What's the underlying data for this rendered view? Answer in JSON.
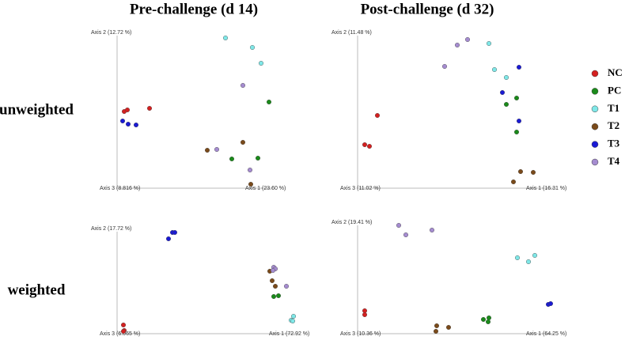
{
  "titles": {
    "columns": [
      "Pre-challenge (d 14)",
      "Post-challenge (d 32)"
    ],
    "rows": [
      "unweighted",
      "weighted"
    ]
  },
  "chart_data": [
    {
      "type": "scatter",
      "ylabel": "Axis 2 (12.72 %)",
      "origin_label": "Axis 3 (8.816 %)",
      "xlabel": "Axis 1 (23.60 %)",
      "xlim": [
        0,
        197
      ],
      "ylim": [
        0,
        193
      ],
      "series": [
        {
          "name": "NC",
          "color": "#d42020",
          "x": [
            9,
            13,
            41
          ],
          "values": [
            97,
            99,
            101
          ]
        },
        {
          "name": "PC",
          "color": "#1a8a1a",
          "x": [
            192,
            145,
            178
          ],
          "values": [
            109,
            37,
            38
          ]
        },
        {
          "name": "T1",
          "color": "#7fe8e8",
          "x": [
            137,
            171,
            182
          ],
          "values": [
            190,
            178,
            158
          ]
        },
        {
          "name": "T2",
          "color": "#7a4a1a",
          "x": [
            114,
            159,
            169
          ],
          "values": [
            48,
            58,
            5
          ]
        },
        {
          "name": "T3",
          "color": "#1a1ad4",
          "x": [
            7,
            14,
            24
          ],
          "values": [
            85,
            81,
            80
          ]
        },
        {
          "name": "T4",
          "color": "#a58cd0",
          "x": [
            159,
            126,
            168
          ],
          "values": [
            130,
            49,
            23
          ]
        }
      ]
    },
    {
      "type": "scatter",
      "ylabel": "Axis 2 (11.48 %)",
      "origin_label": "Axis 3 (11.02 %)",
      "xlabel": "Axis 1 (16.31 %)",
      "xlim": [
        0,
        248
      ],
      "ylim": [
        0,
        193
      ],
      "series": [
        {
          "name": "NC",
          "color": "#d42020",
          "x": [
            25,
            9,
            15
          ],
          "values": [
            92,
            55,
            53
          ]
        },
        {
          "name": "PC",
          "color": "#1a8a1a",
          "x": [
            201,
            188,
            201
          ],
          "values": [
            114,
            106,
            71
          ]
        },
        {
          "name": "T1",
          "color": "#7fe8e8",
          "x": [
            166,
            173,
            188
          ],
          "values": [
            183,
            150,
            140
          ]
        },
        {
          "name": "T2",
          "color": "#7a4a1a",
          "x": [
            206,
            222,
            197
          ],
          "values": [
            21,
            20,
            8
          ]
        },
        {
          "name": "T3",
          "color": "#1a1ad4",
          "x": [
            204,
            183,
            204
          ],
          "values": [
            153,
            121,
            85
          ]
        },
        {
          "name": "T4",
          "color": "#a58cd0",
          "x": [
            126,
            139,
            110
          ],
          "values": [
            181,
            188,
            154
          ]
        }
      ]
    },
    {
      "type": "scatter",
      "ylabel": "Axis 2 (17.72 %)",
      "origin_label": "Axis 3 (6.065 %)",
      "xlabel": "Axis 1 (72.92 %)",
      "xlim": [
        0,
        227
      ],
      "ylim": [
        0,
        129
      ],
      "series": [
        {
          "name": "NC",
          "color": "#d42020",
          "x": [
            8,
            9,
            8
          ],
          "values": [
            11,
            4,
            3
          ]
        },
        {
          "name": "PC",
          "color": "#1a8a1a",
          "x": [
            198,
            204
          ],
          "values": [
            47,
            48
          ]
        },
        {
          "name": "T1",
          "color": "#7fe8e8",
          "x": [
            223,
            220,
            222
          ],
          "values": [
            22,
            17,
            16
          ]
        },
        {
          "name": "T2",
          "color": "#7a4a1a",
          "x": [
            193,
            196,
            200
          ],
          "values": [
            79,
            67,
            60
          ]
        },
        {
          "name": "T3",
          "color": "#1a1ad4",
          "x": [
            65,
            70,
            73
          ],
          "values": [
            120,
            128,
            128
          ]
        },
        {
          "name": "T4",
          "color": "#a58cd0",
          "x": [
            198,
            200,
            214,
            197
          ],
          "values": [
            84,
            82,
            60,
            80
          ]
        }
      ]
    },
    {
      "type": "scatter",
      "ylabel": "Axis 2 (19.41 %)",
      "origin_label": "Axis 3 (10.36 %)",
      "xlabel": "Axis 1 (64.25 %)",
      "xlim": [
        0,
        248
      ],
      "ylim": [
        0,
        137
      ],
      "series": [
        {
          "name": "NC",
          "color": "#d42020",
          "x": [
            9,
            9
          ],
          "values": [
            29,
            24
          ]
        },
        {
          "name": "PC",
          "color": "#1a8a1a",
          "x": [
            159,
            166,
            165
          ],
          "values": [
            18,
            20,
            15
          ]
        },
        {
          "name": "T1",
          "color": "#7fe8e8",
          "x": [
            202,
            216,
            224
          ],
          "values": [
            96,
            91,
            99
          ]
        },
        {
          "name": "T2",
          "color": "#7a4a1a",
          "x": [
            100,
            115,
            99
          ],
          "values": [
            10,
            8,
            3
          ]
        },
        {
          "name": "T3",
          "color": "#1a1ad4",
          "x": [
            241,
            244
          ],
          "values": [
            37,
            38
          ]
        },
        {
          "name": "T4",
          "color": "#a58cd0",
          "x": [
            52,
            61,
            94
          ],
          "values": [
            137,
            125,
            131
          ]
        }
      ]
    }
  ]
}
